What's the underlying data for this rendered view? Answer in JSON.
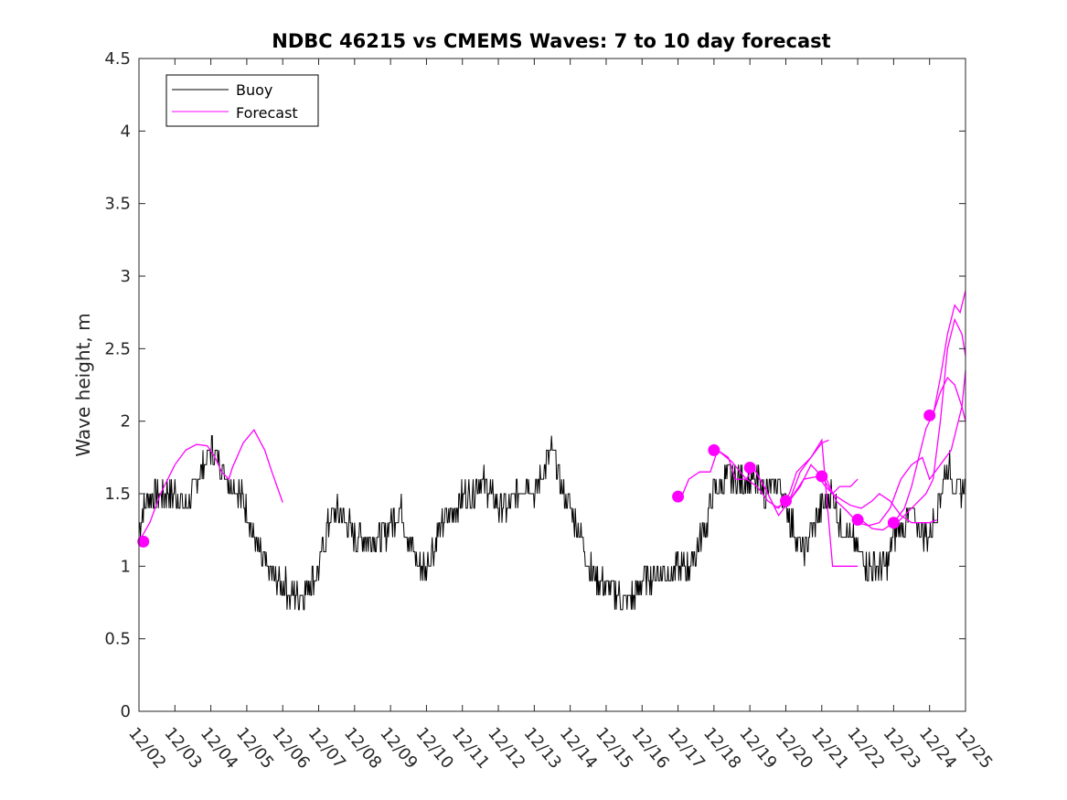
{
  "chart_data": {
    "type": "line",
    "title": "NDBC 46215 vs CMEMS Waves: 7 to 10 day forecast",
    "xlabel": "",
    "ylabel": "Wave height, m",
    "xlim": [
      0,
      23
    ],
    "ylim": [
      0,
      4.5
    ],
    "x_unit": "days since 12/02",
    "yticks": [
      0,
      0.5,
      1,
      1.5,
      2,
      2.5,
      3,
      3.5,
      4,
      4.5
    ],
    "ytick_labels": [
      "0",
      "0.5",
      "1",
      "1.5",
      "2",
      "2.5",
      "3",
      "3.5",
      "4",
      "4.5"
    ],
    "xtick_labels": [
      "12/02",
      "12/03",
      "12/04",
      "12/05",
      "12/06",
      "12/07",
      "12/08",
      "12/09",
      "12/10",
      "12/11",
      "12/12",
      "12/13",
      "12/14",
      "12/15",
      "12/16",
      "12/17",
      "12/18",
      "12/19",
      "12/20",
      "12/21",
      "12/22",
      "12/23",
      "12/24",
      "12/25"
    ],
    "legend": {
      "position": "top-left",
      "entries": [
        "Buoy",
        "Forecast"
      ]
    },
    "colors": {
      "buoy": "#000000",
      "forecast": "#ff00ff"
    },
    "series": [
      {
        "name": "Buoy",
        "type": "noisy-line",
        "noise": 0.1,
        "x": [
          0,
          0.3,
          0.5,
          0.8,
          1.0,
          1.3,
          1.5,
          1.8,
          2.0,
          2.3,
          2.5,
          2.8,
          3.0,
          3.2,
          3.5,
          3.8,
          4.0,
          4.2,
          4.5,
          4.8,
          5.0,
          5.3,
          5.5,
          5.8,
          6.0,
          6.3,
          6.5,
          6.8,
          7.0,
          7.3,
          7.5,
          7.8,
          8.0,
          8.3,
          8.5,
          8.8,
          9.0,
          9.3,
          9.5,
          9.8,
          10.0,
          10.3,
          10.5,
          10.8,
          11.0,
          11.3,
          11.5,
          11.8,
          12.0,
          12.3,
          12.5,
          12.8,
          13.0,
          13.3,
          13.5,
          13.8,
          14.0,
          14.3,
          14.5,
          14.8,
          15.0,
          15.3,
          15.5,
          15.8,
          16.0,
          16.3,
          16.5,
          16.8,
          17.0,
          17.3,
          17.5,
          17.8,
          18.0,
          18.3,
          18.5,
          18.8,
          19.0,
          19.3,
          19.5,
          19.8,
          20.0,
          20.3,
          20.5,
          20.8,
          21.0,
          21.3,
          21.5,
          21.8,
          22.0,
          22.3,
          22.5,
          22.8,
          23.0
        ],
        "y": [
          1.3,
          1.5,
          1.5,
          1.5,
          1.5,
          1.4,
          1.5,
          1.7,
          1.8,
          1.7,
          1.6,
          1.5,
          1.4,
          1.2,
          1.0,
          0.9,
          0.9,
          0.8,
          0.8,
          0.9,
          1.0,
          1.3,
          1.4,
          1.3,
          1.2,
          1.2,
          1.2,
          1.2,
          1.3,
          1.4,
          1.2,
          1.0,
          1.0,
          1.2,
          1.3,
          1.4,
          1.5,
          1.5,
          1.6,
          1.5,
          1.4,
          1.4,
          1.5,
          1.6,
          1.5,
          1.7,
          1.8,
          1.5,
          1.4,
          1.2,
          1.0,
          0.9,
          0.85,
          0.8,
          0.75,
          0.8,
          0.9,
          0.95,
          0.95,
          0.95,
          1.0,
          1.0,
          1.1,
          1.3,
          1.5,
          1.6,
          1.6,
          1.6,
          1.6,
          1.55,
          1.5,
          1.6,
          1.4,
          1.2,
          1.1,
          1.3,
          1.4,
          1.5,
          1.3,
          1.2,
          1.1,
          1.0,
          1.0,
          1.0,
          1.2,
          1.3,
          1.35,
          1.25,
          1.2,
          1.5,
          1.7,
          1.5,
          1.6
        ]
      },
      {
        "name": "Forecast",
        "segments": [
          {
            "x": [
              0,
              0.3,
              0.6,
              1.0,
              1.3,
              1.6,
              1.9,
              2.1,
              2.3,
              2.5,
              2.6,
              2.9,
              3.2,
              3.5,
              3.7,
              4.0
            ],
            "y": [
              1.17,
              1.3,
              1.5,
              1.7,
              1.8,
              1.84,
              1.83,
              1.76,
              1.65,
              1.6,
              1.68,
              1.85,
              1.94,
              1.8,
              1.65,
              1.44
            ]
          },
          {
            "x": [
              15.1,
              15.3,
              15.6,
              15.9,
              16.1,
              16.4,
              16.6,
              16.9,
              17.2,
              17.5,
              17.8,
              18.1,
              18.3,
              18.7,
              19.0,
              19.3,
              19.5,
              19.8,
              20.0
            ],
            "y": [
              1.48,
              1.6,
              1.65,
              1.65,
              1.8,
              1.75,
              1.6,
              1.6,
              1.55,
              1.45,
              1.4,
              1.5,
              1.65,
              1.75,
              1.87,
              1.0,
              1.0,
              1.0,
              1.0
            ]
          },
          {
            "x": [
              16.1,
              16.5,
              16.9,
              17.1,
              17.4,
              17.7,
              18.1,
              18.5,
              18.9,
              19.1,
              19.3,
              19.5,
              19.8,
              20.0
            ],
            "y": [
              1.8,
              1.72,
              1.6,
              1.68,
              1.55,
              1.4,
              1.45,
              1.6,
              1.62,
              1.55,
              1.5,
              1.55,
              1.55,
              1.6
            ]
          },
          {
            "x": [
              17.1,
              17.5,
              17.8,
              18.1,
              18.4,
              18.7,
              19.0,
              19.2
            ],
            "y": [
              1.68,
              1.5,
              1.35,
              1.45,
              1.65,
              1.75,
              1.85,
              1.87
            ]
          },
          {
            "x": [
              18.1,
              18.4,
              18.7,
              19.0,
              19.3,
              19.6,
              19.8,
              20.1,
              20.4,
              20.6,
              20.9,
              21.2,
              21.5,
              21.8,
              22.0,
              22.2
            ],
            "y": [
              1.45,
              1.55,
              1.7,
              1.62,
              1.5,
              1.45,
              1.42,
              1.4,
              1.45,
              1.5,
              1.45,
              1.35,
              1.3,
              1.3,
              1.3,
              1.32
            ]
          },
          {
            "x": [
              19.1,
              19.4,
              19.7,
              20.0,
              20.3,
              20.6,
              20.9,
              21.2,
              21.5,
              21.8,
              22.0,
              22.3,
              22.6,
              22.9,
              23.0
            ],
            "y": [
              1.62,
              1.45,
              1.38,
              1.3,
              1.28,
              1.3,
              1.4,
              1.6,
              1.7,
              1.75,
              1.6,
              1.7,
              1.8,
              2.1,
              2.35
            ]
          },
          {
            "x": [
              20.1,
              20.4,
              20.7,
              21.0,
              21.3,
              21.5,
              21.7,
              21.9,
              22.1,
              22.3,
              22.5,
              22.7,
              22.9,
              23.0
            ],
            "y": [
              1.32,
              1.26,
              1.25,
              1.3,
              1.4,
              1.55,
              1.75,
              1.95,
              2.05,
              2.2,
              2.3,
              2.25,
              2.1,
              2.0
            ]
          },
          {
            "x": [
              21.1,
              21.3,
              21.5,
              21.7,
              21.9,
              22.1,
              22.3,
              22.5,
              22.7,
              22.9,
              23.0
            ],
            "y": [
              1.3,
              1.35,
              1.4,
              1.45,
              1.5,
              1.6,
              2.0,
              2.5,
              2.7,
              2.6,
              2.45
            ]
          },
          {
            "x": [
              22.1,
              22.3,
              22.5,
              22.7,
              22.85,
              23.0
            ],
            "y": [
              2.04,
              2.3,
              2.6,
              2.8,
              2.75,
              2.9
            ]
          }
        ],
        "markers": {
          "x": [
            0.12,
            15.0,
            16.0,
            17.0,
            18.0,
            19.0,
            20.0,
            21.0,
            22.0
          ],
          "y": [
            1.17,
            1.48,
            1.8,
            1.68,
            1.45,
            1.62,
            1.32,
            1.3,
            2.04
          ]
        }
      }
    ]
  }
}
